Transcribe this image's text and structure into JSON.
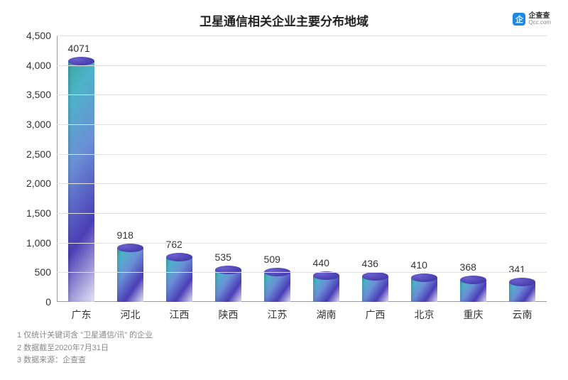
{
  "title": "卫星通信相关企业主要分布地域",
  "title_fontsize": 17,
  "watermark": {
    "cn": "企查查",
    "en": "Qcc.com",
    "icon_letter": "企"
  },
  "chart": {
    "type": "bar",
    "categories": [
      "广东",
      "河北",
      "江西",
      "陕西",
      "江苏",
      "湖南",
      "广西",
      "北京",
      "重庆",
      "云南"
    ],
    "values": [
      4071,
      918,
      762,
      535,
      509,
      440,
      436,
      410,
      368,
      341
    ],
    "ylim": [
      0,
      4500
    ],
    "ytick_step": 500,
    "bar_width_pct": 55,
    "axis_label_fontsize": 14,
    "value_label_fontsize": 14,
    "grid_color": "#e0e0e0",
    "axis_color": "#999999",
    "text_color": "#333333",
    "bar_gradient_stops": [
      "#3aa7a0",
      "#4db3c9",
      "#6b8fd6",
      "#4b3eb5",
      "#e6e6f5"
    ]
  },
  "footnotes": [
    "1 仅统计关键词含 \"卫星通信/讯\" 的企业",
    "2 数据截至2020年7月31日",
    "3 数据来源：企查查"
  ],
  "footnote_fontsize": 11
}
